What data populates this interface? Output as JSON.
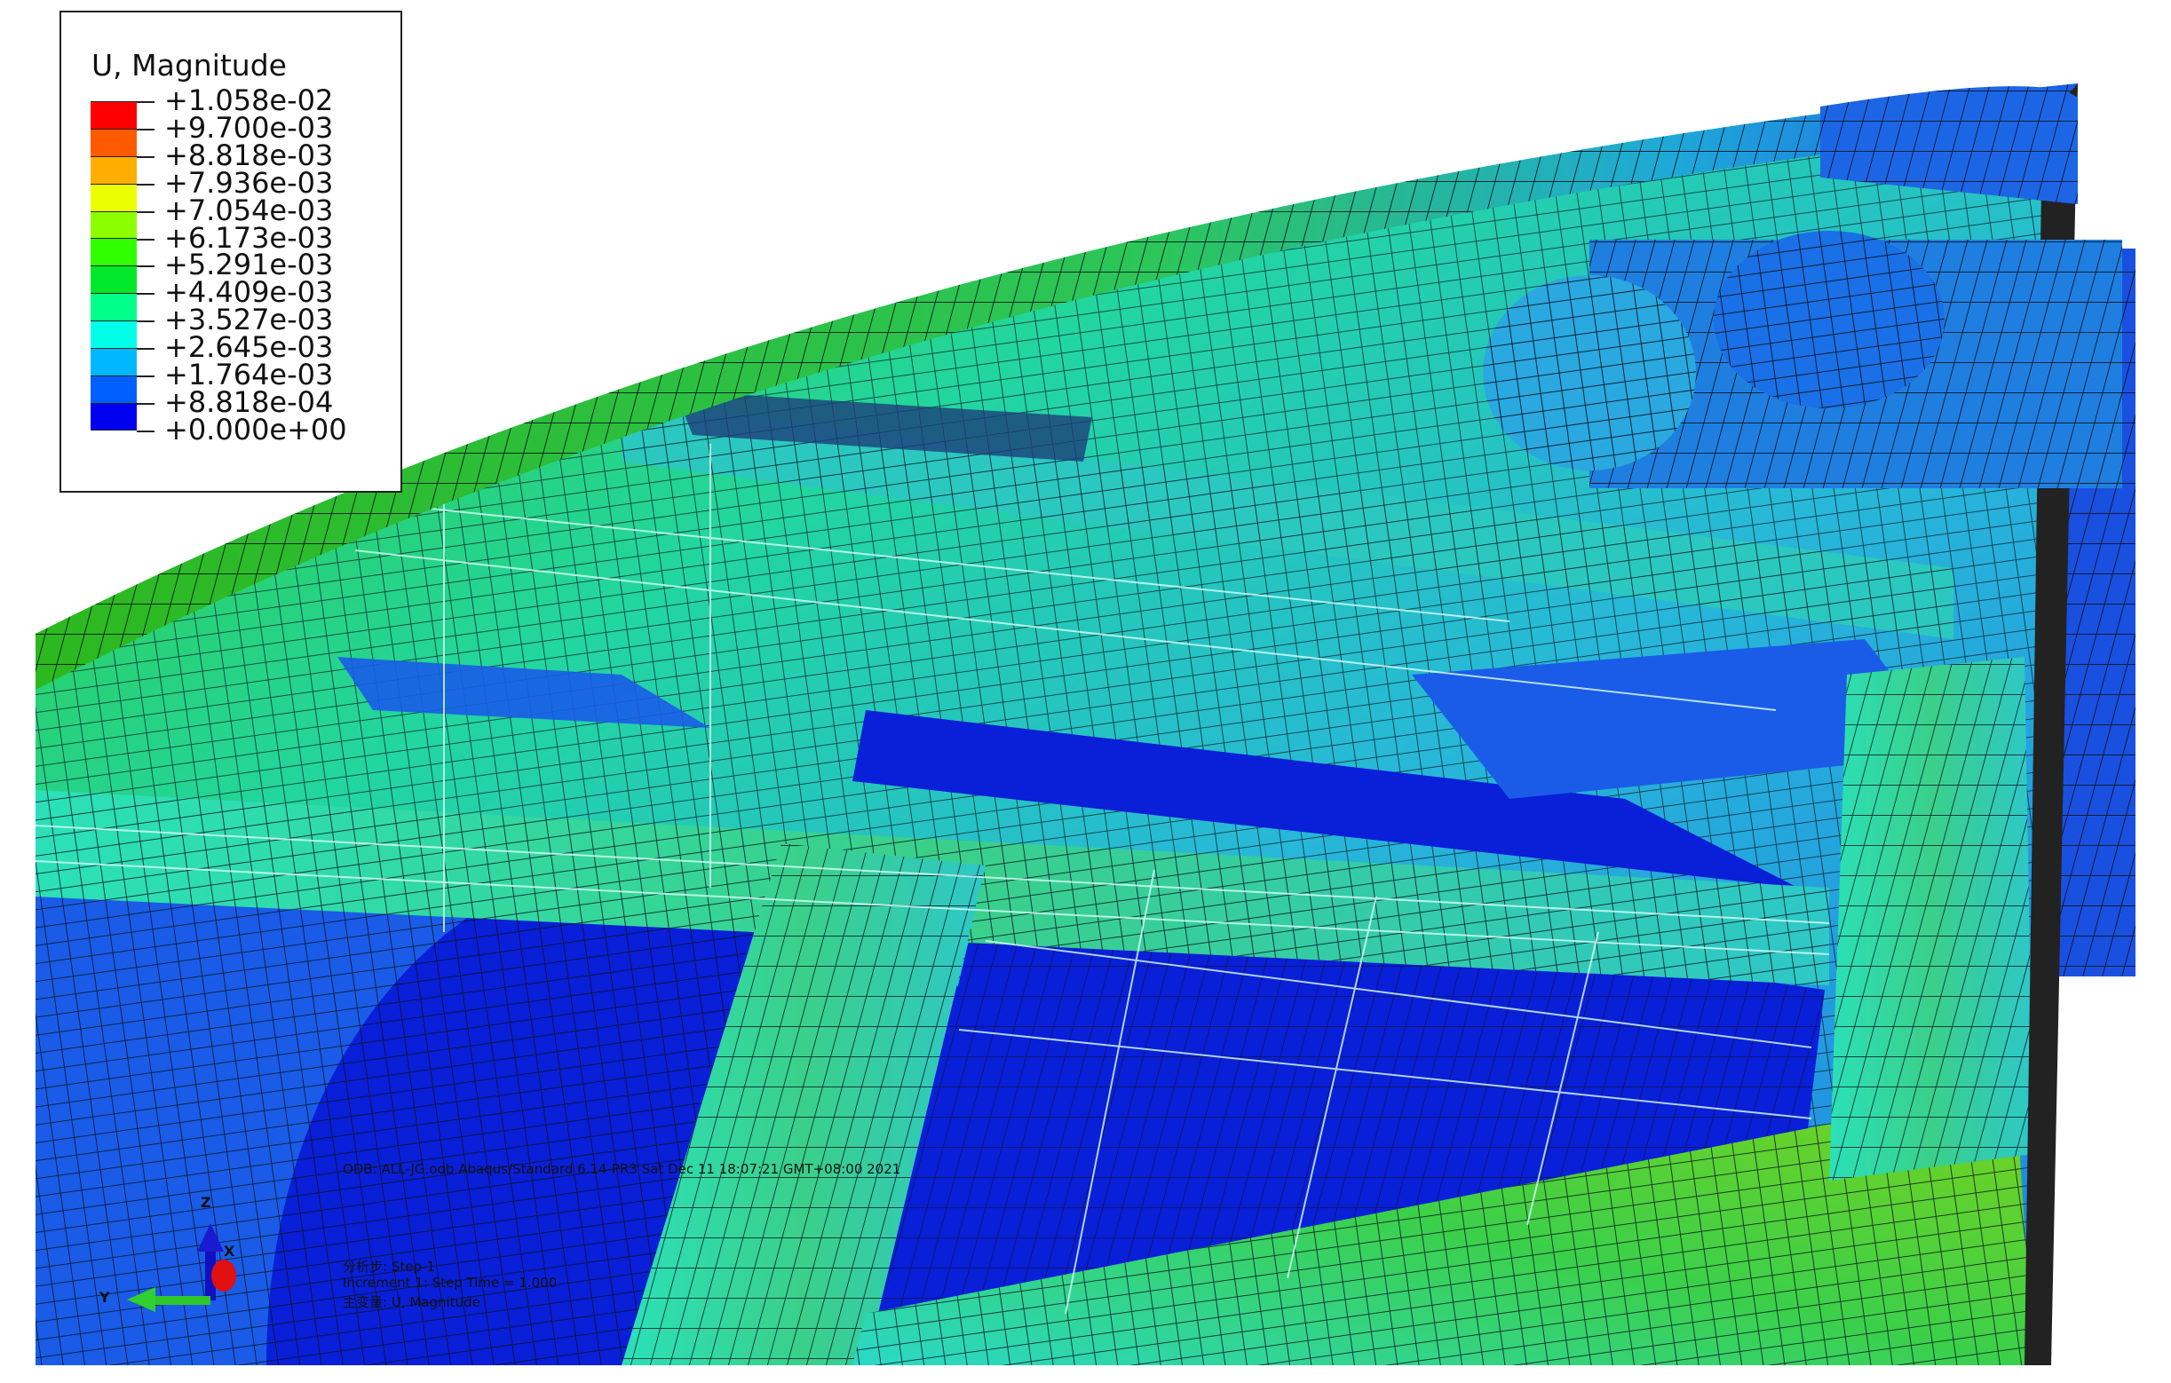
{
  "legend": {
    "title": "U, Magnitude",
    "labels": [
      "+1.058e-02",
      "+9.700e-03",
      "+8.818e-03",
      "+7.936e-03",
      "+7.054e-03",
      "+6.173e-03",
      "+5.291e-03",
      "+4.409e-03",
      "+3.527e-03",
      "+2.645e-03",
      "+1.764e-03",
      "+8.818e-04",
      "+0.000e+00"
    ],
    "colors": [
      "#ff0000",
      "#ff5a00",
      "#ffae00",
      "#ecff00",
      "#8cff00",
      "#30ff00",
      "#00e829",
      "#00ff88",
      "#00ffe8",
      "#00b8ff",
      "#0060ff",
      "#0000f0"
    ]
  },
  "info": {
    "odb_line": "ODB: ALL-JG.odb    Abaqus/Standard 6.14-PR3    Sat Dec 11 18:07:21 GMT+08:00 2021",
    "step_line": "分析步: Step-1",
    "increment_line": "Increment     1: Step Time =    1.000",
    "variable_line": "主变量: U, Magnitude"
  },
  "triad": {
    "z": "Z",
    "x": "X",
    "y": "Y"
  },
  "colors": {
    "deep_blue": "#0a1fd8",
    "blue": "#1a5ce8",
    "cyan": "#2fd6d0",
    "green": "#2ec82a",
    "mesh": "#0a1a2a"
  }
}
